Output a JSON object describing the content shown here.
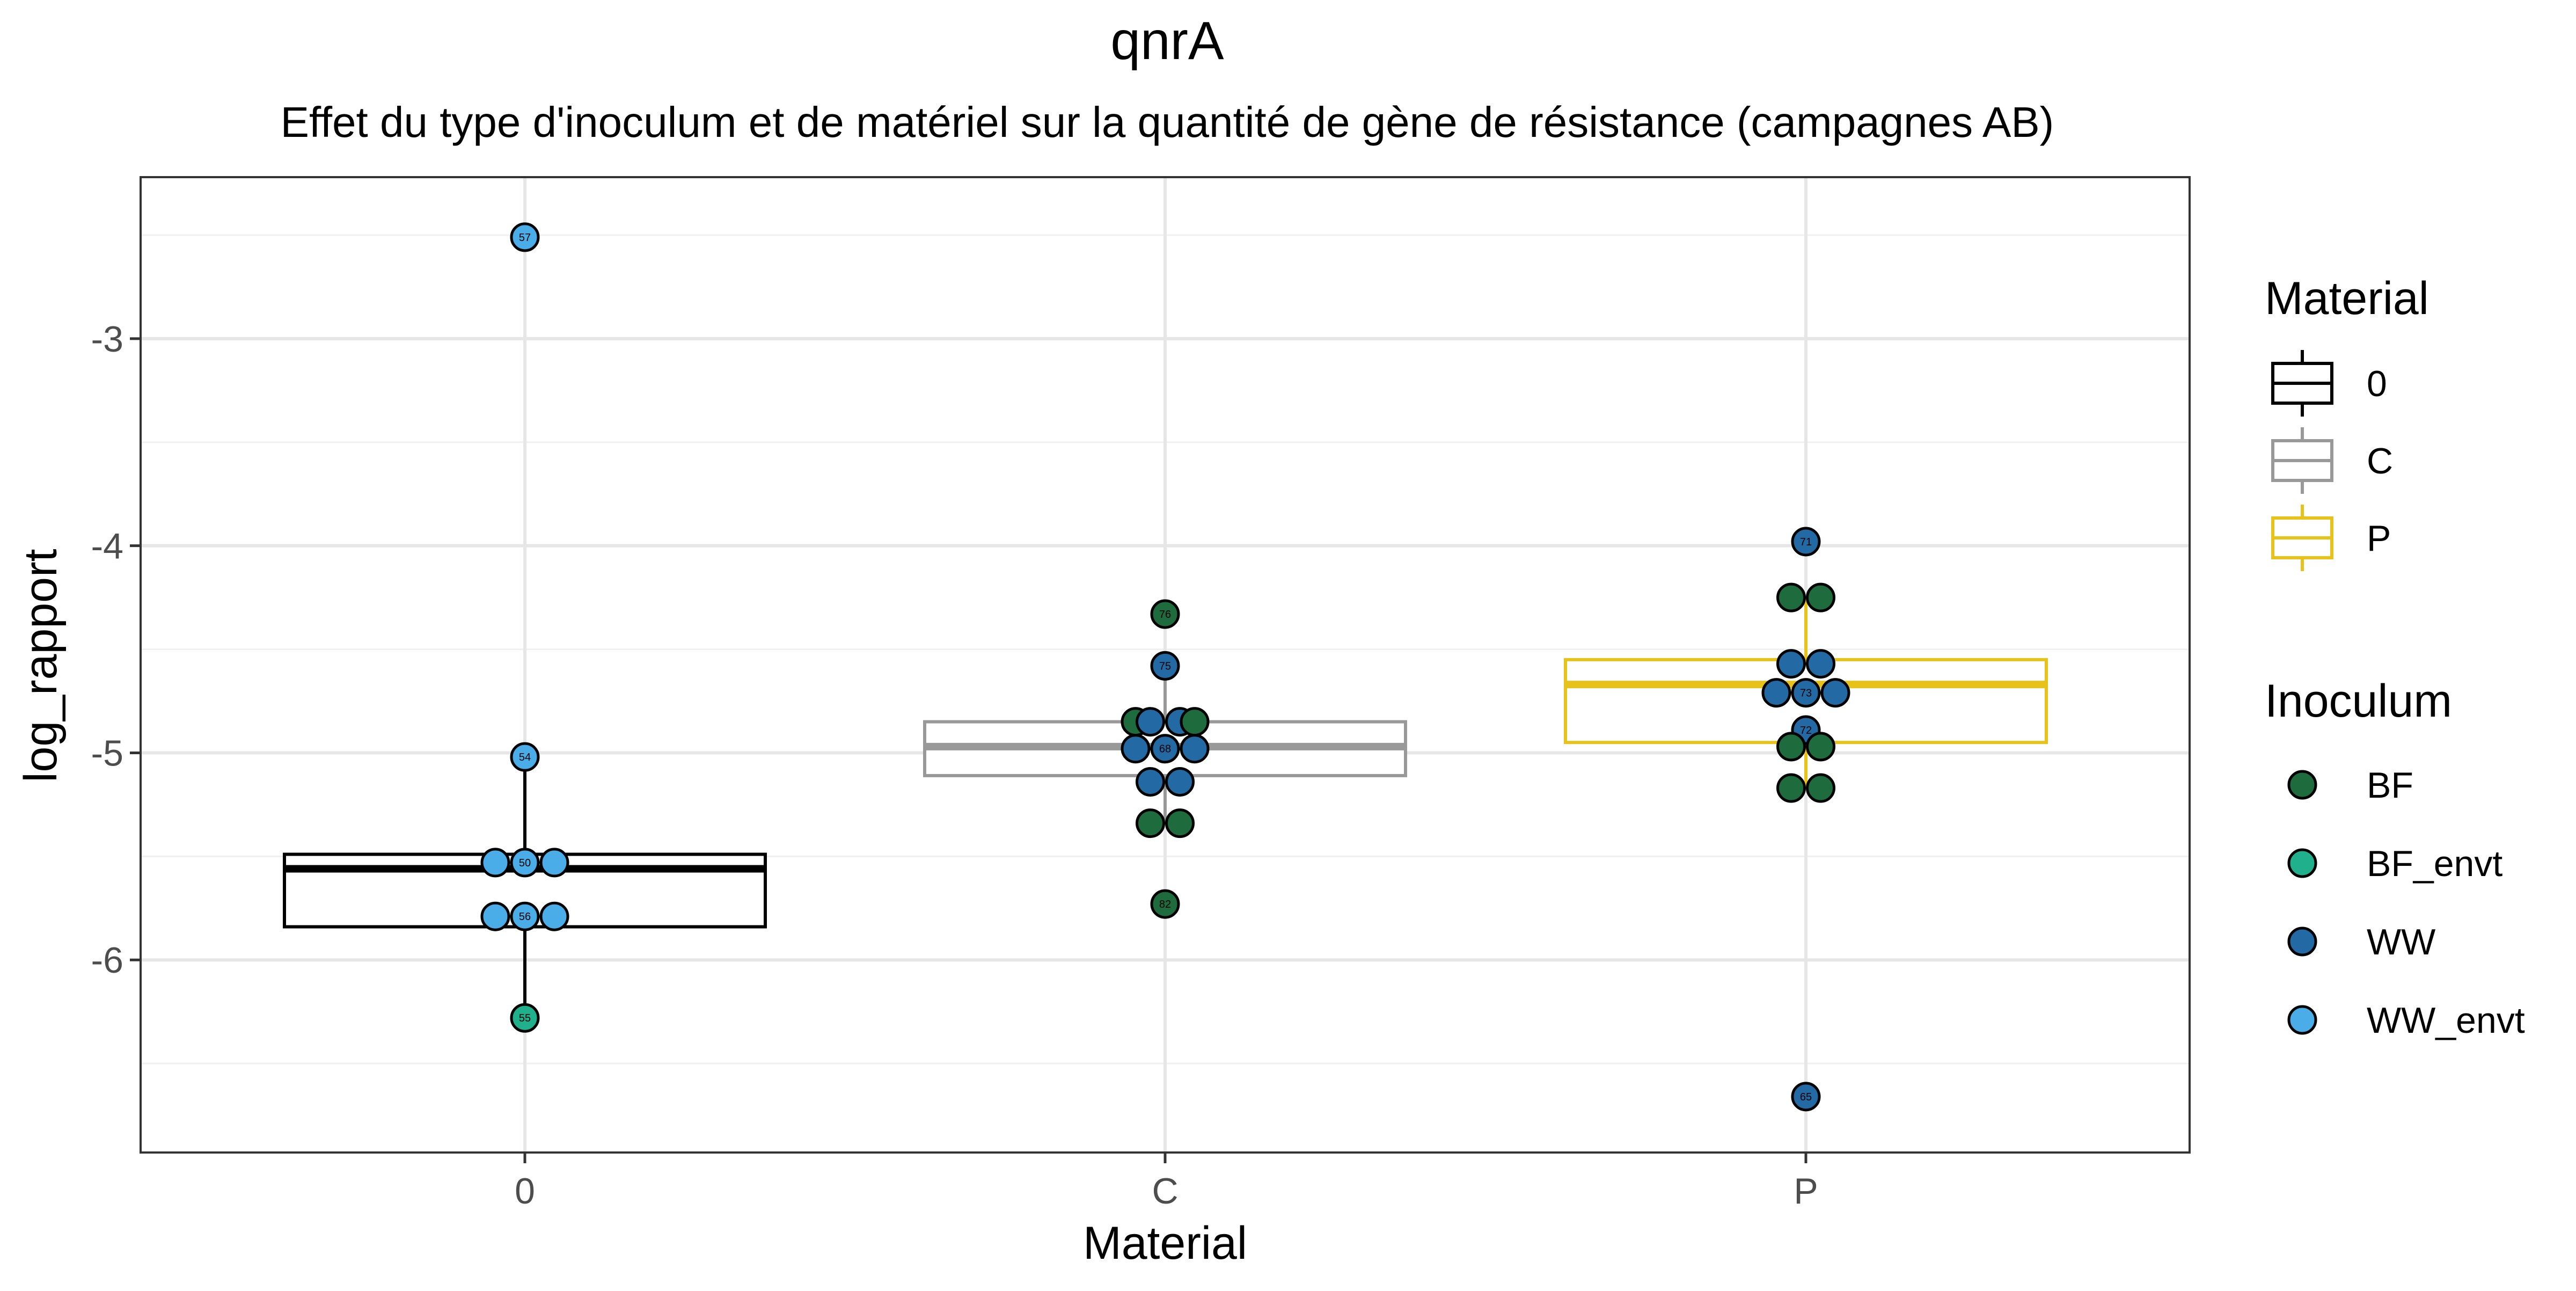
{
  "chart_data": {
    "type": "boxplot",
    "title": "qnrA",
    "subtitle": "Effet du type d'inoculum et de matériel sur la quantité de gène de résistance (campagnes AB)",
    "xlabel": "Material",
    "ylabel": "log_rapport",
    "categories": [
      "0",
      "C",
      "P"
    ],
    "ylim": [
      -6.93,
      -2.22
    ],
    "yticks": [
      {
        "value": -6,
        "label": "-6"
      },
      {
        "value": -5,
        "label": "-5"
      },
      {
        "value": -4,
        "label": "-4"
      },
      {
        "value": -3,
        "label": "-3"
      }
    ],
    "grid": true,
    "boxes": [
      {
        "category": "0",
        "color": "#000000",
        "q1": -5.84,
        "median": -5.56,
        "q3": -5.49,
        "whisker_low": -6.28,
        "whisker_high": -5.02
      },
      {
        "category": "C",
        "color": "#999999",
        "q1": -5.11,
        "median": -4.97,
        "q3": -4.85,
        "whisker_low": -5.34,
        "whisker_high": -4.58
      },
      {
        "category": "P",
        "color": "#E6C21A",
        "q1": -4.95,
        "median": -4.67,
        "q3": -4.55,
        "whisker_low": -5.17,
        "whisker_high": -4.25
      }
    ],
    "points": [
      {
        "category": "0",
        "y": -2.51,
        "offset": 0,
        "inoculum": "WW_envt",
        "label": "57"
      },
      {
        "category": "0",
        "y": -5.02,
        "offset": 0,
        "inoculum": "WW_envt",
        "label": "54"
      },
      {
        "category": "0",
        "y": -5.53,
        "offset": -1,
        "inoculum": "WW_envt",
        "label": ""
      },
      {
        "category": "0",
        "y": -5.53,
        "offset": 0,
        "inoculum": "WW_envt",
        "label": "50"
      },
      {
        "category": "0",
        "y": -5.53,
        "offset": 1,
        "inoculum": "WW_envt",
        "label": ""
      },
      {
        "category": "0",
        "y": -5.79,
        "offset": -1,
        "inoculum": "WW_envt",
        "label": ""
      },
      {
        "category": "0",
        "y": -5.79,
        "offset": 0,
        "inoculum": "WW_envt",
        "label": "56"
      },
      {
        "category": "0",
        "y": -5.79,
        "offset": 1,
        "inoculum": "WW_envt",
        "label": ""
      },
      {
        "category": "0",
        "y": -6.28,
        "offset": 0,
        "inoculum": "BF_envt",
        "label": "55"
      },
      {
        "category": "C",
        "y": -4.33,
        "offset": 0,
        "inoculum": "BF",
        "label": "76"
      },
      {
        "category": "C",
        "y": -4.58,
        "offset": 0,
        "inoculum": "WW",
        "label": "75"
      },
      {
        "category": "C",
        "y": -4.85,
        "offset": -1,
        "inoculum": "BF",
        "label": ""
      },
      {
        "category": "C",
        "y": -4.85,
        "offset": -0.5,
        "inoculum": "WW",
        "label": ""
      },
      {
        "category": "C",
        "y": -4.85,
        "offset": 0.5,
        "inoculum": "WW",
        "label": ""
      },
      {
        "category": "C",
        "y": -4.85,
        "offset": 1,
        "inoculum": "BF",
        "label": ""
      },
      {
        "category": "C",
        "y": -4.98,
        "offset": -1,
        "inoculum": "WW",
        "label": ""
      },
      {
        "category": "C",
        "y": -4.98,
        "offset": 0,
        "inoculum": "WW",
        "label": "68"
      },
      {
        "category": "C",
        "y": -4.98,
        "offset": 1,
        "inoculum": "WW",
        "label": ""
      },
      {
        "category": "C",
        "y": -5.14,
        "offset": -0.5,
        "inoculum": "WW",
        "label": ""
      },
      {
        "category": "C",
        "y": -5.14,
        "offset": 0.5,
        "inoculum": "WW",
        "label": ""
      },
      {
        "category": "C",
        "y": -5.34,
        "offset": -0.5,
        "inoculum": "BF",
        "label": ""
      },
      {
        "category": "C",
        "y": -5.34,
        "offset": 0.5,
        "inoculum": "BF",
        "label": ""
      },
      {
        "category": "C",
        "y": -5.73,
        "offset": 0,
        "inoculum": "BF",
        "label": "82"
      },
      {
        "category": "P",
        "y": -3.98,
        "offset": 0,
        "inoculum": "WW",
        "label": "71"
      },
      {
        "category": "P",
        "y": -4.25,
        "offset": -0.5,
        "inoculum": "BF",
        "label": ""
      },
      {
        "category": "P",
        "y": -4.25,
        "offset": 0.5,
        "inoculum": "BF",
        "label": ""
      },
      {
        "category": "P",
        "y": -4.57,
        "offset": -0.5,
        "inoculum": "WW",
        "label": ""
      },
      {
        "category": "P",
        "y": -4.57,
        "offset": 0.5,
        "inoculum": "WW",
        "label": ""
      },
      {
        "category": "P",
        "y": -4.71,
        "offset": -1,
        "inoculum": "WW",
        "label": ""
      },
      {
        "category": "P",
        "y": -4.71,
        "offset": 0,
        "inoculum": "WW",
        "label": "73"
      },
      {
        "category": "P",
        "y": -4.71,
        "offset": 1,
        "inoculum": "WW",
        "label": ""
      },
      {
        "category": "P",
        "y": -4.89,
        "offset": 0,
        "inoculum": "WW",
        "label": "72"
      },
      {
        "category": "P",
        "y": -4.97,
        "offset": -0.5,
        "inoculum": "BF",
        "label": ""
      },
      {
        "category": "P",
        "y": -4.97,
        "offset": 0.5,
        "inoculum": "BF",
        "label": ""
      },
      {
        "category": "P",
        "y": -5.17,
        "offset": -0.5,
        "inoculum": "BF",
        "label": ""
      },
      {
        "category": "P",
        "y": -5.17,
        "offset": 0.5,
        "inoculum": "BF",
        "label": ""
      },
      {
        "category": "P",
        "y": -6.66,
        "offset": 0,
        "inoculum": "WW",
        "label": "65"
      }
    ],
    "legend": {
      "placement": "right",
      "material": {
        "title": "Material",
        "entries": [
          {
            "label": "0",
            "color": "#000000"
          },
          {
            "label": "C",
            "color": "#999999"
          },
          {
            "label": "P",
            "color": "#E6C21A"
          }
        ]
      },
      "inoculum": {
        "title": "Inoculum",
        "entries": [
          {
            "label": "BF",
            "color": "#1E6B3D"
          },
          {
            "label": "BF_envt",
            "color": "#20B08C"
          },
          {
            "label": "WW",
            "color": "#2369A3"
          },
          {
            "label": "WW_envt",
            "color": "#4AADE8"
          }
        ]
      }
    }
  }
}
